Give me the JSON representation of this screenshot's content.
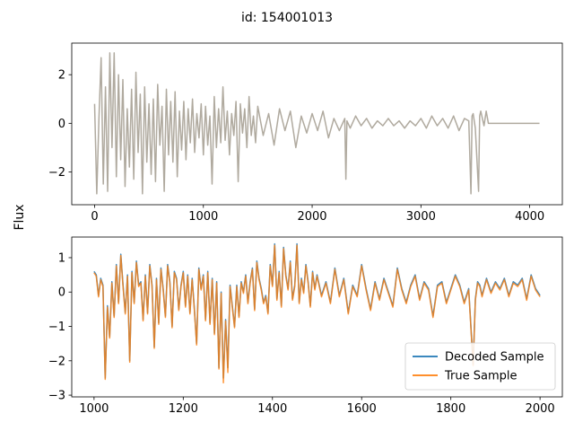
{
  "figure": {
    "suptitle": "id: 154001013",
    "ylabel": "Flux"
  },
  "colors": {
    "decoded": "#1f77b4",
    "true": "#ff7f0e",
    "top_overlap": "#b0aa9f",
    "legend_border": "#cccccc"
  },
  "chart_data": [
    {
      "type": "line",
      "panel": "top",
      "xlim": [
        -210,
        4300
      ],
      "ylim": [
        -3.35,
        3.3
      ],
      "xticks": [
        0,
        1000,
        2000,
        3000,
        4000
      ],
      "yticks": [
        -2,
        0,
        2
      ],
      "ytick_labels": [
        "−2",
        "0",
        "2"
      ],
      "series": [
        {
          "x": [
            0,
            20,
            40,
            60,
            80,
            100,
            120,
            140,
            160,
            180,
            200,
            220,
            240,
            260,
            280,
            300,
            320,
            340,
            360,
            380,
            400,
            420,
            440,
            460,
            480,
            500,
            520,
            540,
            560,
            580,
            600,
            620,
            640,
            660,
            680,
            700,
            720,
            740,
            760,
            780,
            800,
            820,
            840,
            860,
            880,
            900,
            920,
            940,
            960,
            980,
            1000,
            1020,
            1040,
            1060,
            1080,
            1100,
            1120,
            1140,
            1160,
            1180,
            1200,
            1220,
            1240,
            1260,
            1280,
            1300,
            1320,
            1340,
            1360,
            1380,
            1400,
            1420,
            1440,
            1460,
            1480,
            1500,
            1550,
            1600,
            1650,
            1700,
            1750,
            1800,
            1850,
            1900,
            1950,
            2000,
            2050,
            2100,
            2150,
            2200,
            2250,
            2300,
            2310,
            2320,
            2350,
            2400,
            2450,
            2500,
            2550,
            2600,
            2650,
            2700,
            2750,
            2800,
            2850,
            2900,
            2950,
            3000,
            3050,
            3100,
            3150,
            3200,
            3250,
            3300,
            3350,
            3400,
            3440,
            3460,
            3470,
            3480,
            3500,
            3530,
            3540,
            3550,
            3580,
            3600,
            3620,
            3700,
            3800,
            3900,
            4000,
            4090
          ],
          "y": [
            0.8,
            -2.9,
            0.2,
            2.7,
            -2.5,
            1.5,
            -2.8,
            2.9,
            -1.0,
            2.9,
            -2.2,
            2.0,
            -1.5,
            1.8,
            -2.6,
            0.6,
            -1.8,
            1.4,
            -2.3,
            2.1,
            -1.2,
            1.2,
            -2.9,
            1.5,
            -1.6,
            0.8,
            -2.1,
            1.0,
            -2.4,
            1.6,
            -0.9,
            0.7,
            -2.8,
            1.4,
            -1.3,
            0.9,
            -1.6,
            1.3,
            -2.2,
            0.5,
            -1.1,
            0.9,
            -1.5,
            0.6,
            -0.8,
            1.0,
            -1.2,
            0.4,
            -0.6,
            0.8,
            -1.3,
            0.7,
            -0.9,
            0.3,
            -2.5,
            1.1,
            -1.0,
            0.6,
            -0.8,
            1.5,
            -0.7,
            0.5,
            -1.3,
            0.4,
            -0.5,
            0.9,
            -2.4,
            0.8,
            -0.4,
            0.6,
            -1.0,
            1.1,
            -0.5,
            0.3,
            -0.8,
            0.7,
            -0.5,
            0.4,
            -0.9,
            0.6,
            -0.3,
            0.5,
            -1.0,
            0.3,
            -0.4,
            0.4,
            -0.3,
            0.5,
            -0.6,
            0.2,
            -0.3,
            0.2,
            -2.3,
            0.1,
            -0.2,
            0.3,
            -0.1,
            0.2,
            -0.2,
            0.1,
            -0.1,
            0.2,
            -0.1,
            0.1,
            -0.2,
            0.1,
            -0.1,
            0.2,
            -0.2,
            0.3,
            -0.1,
            0.2,
            -0.2,
            0.3,
            -0.3,
            0.2,
            0.1,
            -2.9,
            0.3,
            0.4,
            -0.2,
            -2.8,
            0.3,
            0.5,
            -0.1,
            0.5,
            0.0,
            0.0,
            0.0,
            0.0,
            0.0,
            0.0
          ],
          "color": "#b0aa9f"
        }
      ]
    },
    {
      "type": "line",
      "panel": "bottom",
      "xlim": [
        950,
        2050
      ],
      "ylim": [
        -3.05,
        1.6
      ],
      "xticks": [
        1000,
        1200,
        1400,
        1600,
        1800,
        2000
      ],
      "yticks": [
        -3,
        -2,
        -1,
        0,
        1
      ],
      "ytick_labels": [
        "−3",
        "−2",
        "−1",
        "0",
        "1"
      ],
      "legend": "lower right",
      "series": [
        {
          "name": "Decoded Sample",
          "color": "#1f77b4",
          "x": [
            1000,
            1005,
            1010,
            1015,
            1020,
            1025,
            1030,
            1035,
            1040,
            1045,
            1050,
            1055,
            1060,
            1065,
            1070,
            1075,
            1080,
            1085,
            1090,
            1095,
            1100,
            1105,
            1110,
            1115,
            1120,
            1125,
            1130,
            1135,
            1140,
            1145,
            1150,
            1155,
            1160,
            1165,
            1170,
            1175,
            1180,
            1185,
            1190,
            1195,
            1200,
            1205,
            1210,
            1215,
            1220,
            1225,
            1230,
            1235,
            1240,
            1245,
            1250,
            1255,
            1260,
            1265,
            1270,
            1275,
            1280,
            1285,
            1290,
            1295,
            1300,
            1305,
            1310,
            1315,
            1320,
            1325,
            1330,
            1335,
            1340,
            1345,
            1350,
            1355,
            1360,
            1365,
            1370,
            1375,
            1380,
            1385,
            1390,
            1395,
            1400,
            1405,
            1410,
            1415,
            1420,
            1425,
            1430,
            1435,
            1440,
            1445,
            1450,
            1455,
            1460,
            1465,
            1470,
            1475,
            1480,
            1485,
            1490,
            1495,
            1500,
            1510,
            1520,
            1530,
            1540,
            1550,
            1560,
            1570,
            1580,
            1590,
            1600,
            1610,
            1620,
            1630,
            1640,
            1650,
            1660,
            1670,
            1680,
            1690,
            1700,
            1710,
            1720,
            1730,
            1740,
            1750,
            1760,
            1770,
            1780,
            1790,
            1800,
            1810,
            1820,
            1830,
            1840,
            1850,
            1855,
            1860,
            1865,
            1870,
            1880,
            1890,
            1900,
            1910,
            1920,
            1930,
            1940,
            1950,
            1960,
            1970,
            1980,
            1990,
            2000
          ],
          "y": [
            0.6,
            0.5,
            -0.1,
            0.4,
            0.2,
            -2.5,
            -0.4,
            -1.3,
            0.3,
            -0.7,
            0.8,
            -0.3,
            1.1,
            0.2,
            -0.6,
            0.5,
            -2.0,
            0.6,
            -0.3,
            0.9,
            0.2,
            0.3,
            -0.8,
            0.5,
            -0.6,
            0.8,
            0.2,
            -1.6,
            0.4,
            -0.9,
            0.7,
            0.1,
            -0.7,
            0.8,
            0.3,
            -1.0,
            0.6,
            0.4,
            -0.5,
            0.2,
            0.6,
            -0.4,
            0.5,
            -0.6,
            0.4,
            -0.5,
            -1.5,
            0.7,
            0.1,
            0.5,
            -0.8,
            0.6,
            -0.9,
            0.4,
            -1.2,
            0.3,
            -2.2,
            0.0,
            -2.5,
            -0.8,
            -2.2,
            0.2,
            -0.4,
            -1.0,
            0.2,
            -0.7,
            0.3,
            0.0,
            0.5,
            -0.3,
            0.3,
            0.7,
            -0.5,
            0.9,
            0.4,
            0.1,
            -0.3,
            -0.1,
            -0.6,
            0.8,
            0.2,
            1.4,
            -0.2,
            0.6,
            -0.4,
            1.3,
            0.5,
            0.1,
            0.9,
            -0.2,
            0.2,
            1.4,
            -0.3,
            0.4,
            0.0,
            0.8,
            0.3,
            -0.4,
            0.6,
            0.1,
            0.5,
            -0.1,
            0.3,
            -0.3,
            0.7,
            -0.1,
            0.4,
            -0.6,
            0.2,
            -0.1,
            0.8,
            0.1,
            -0.5,
            0.3,
            -0.2,
            0.4,
            0.0,
            -0.4,
            0.7,
            0.1,
            -0.3,
            0.2,
            0.5,
            -0.2,
            0.3,
            0.1,
            -0.7,
            0.2,
            0.3,
            -0.3,
            0.1,
            0.5,
            0.2,
            -0.3,
            0.1,
            -2.1,
            -0.2,
            0.3,
            0.2,
            -0.1,
            0.4,
            0.0,
            0.3,
            0.1,
            0.4,
            -0.1,
            0.3,
            0.2,
            0.4,
            -0.2,
            0.5,
            0.1,
            -0.1
          ],
          "draw_offset": 0.0
        },
        {
          "name": "True Sample",
          "color": "#ff7f0e",
          "x": [
            1000,
            1005,
            1010,
            1015,
            1020,
            1025,
            1030,
            1035,
            1040,
            1045,
            1050,
            1055,
            1060,
            1065,
            1070,
            1075,
            1080,
            1085,
            1090,
            1095,
            1100,
            1105,
            1110,
            1115,
            1120,
            1125,
            1130,
            1135,
            1140,
            1145,
            1150,
            1155,
            1160,
            1165,
            1170,
            1175,
            1180,
            1185,
            1190,
            1195,
            1200,
            1205,
            1210,
            1215,
            1220,
            1225,
            1230,
            1235,
            1240,
            1245,
            1250,
            1255,
            1260,
            1265,
            1270,
            1275,
            1280,
            1285,
            1290,
            1295,
            1300,
            1305,
            1310,
            1315,
            1320,
            1325,
            1330,
            1335,
            1340,
            1345,
            1350,
            1355,
            1360,
            1365,
            1370,
            1375,
            1380,
            1385,
            1390,
            1395,
            1400,
            1405,
            1410,
            1415,
            1420,
            1425,
            1430,
            1435,
            1440,
            1445,
            1450,
            1455,
            1460,
            1465,
            1470,
            1475,
            1480,
            1485,
            1490,
            1495,
            1500,
            1510,
            1520,
            1530,
            1540,
            1550,
            1560,
            1570,
            1580,
            1590,
            1600,
            1610,
            1620,
            1630,
            1640,
            1650,
            1660,
            1670,
            1680,
            1690,
            1700,
            1710,
            1720,
            1730,
            1740,
            1750,
            1760,
            1770,
            1780,
            1790,
            1800,
            1810,
            1820,
            1830,
            1840,
            1850,
            1855,
            1860,
            1865,
            1870,
            1880,
            1890,
            1900,
            1910,
            1920,
            1930,
            1940,
            1950,
            1960,
            1970,
            1980,
            1990,
            2000
          ],
          "y": [
            0.6,
            0.5,
            -0.1,
            0.4,
            0.2,
            -2.5,
            -0.4,
            -1.3,
            0.3,
            -0.7,
            0.8,
            -0.3,
            1.1,
            0.2,
            -0.6,
            0.5,
            -2.0,
            0.6,
            -0.3,
            0.9,
            0.2,
            0.3,
            -0.8,
            0.5,
            -0.6,
            0.8,
            0.2,
            -1.6,
            0.4,
            -0.9,
            0.7,
            0.1,
            -0.7,
            0.8,
            0.3,
            -1.0,
            0.6,
            0.4,
            -0.5,
            0.2,
            0.6,
            -0.4,
            0.5,
            -0.6,
            0.4,
            -0.5,
            -1.5,
            0.7,
            0.1,
            0.5,
            -0.8,
            0.6,
            -0.9,
            0.4,
            -1.2,
            0.3,
            -2.2,
            0.0,
            -2.6,
            -0.8,
            -2.3,
            0.2,
            -0.4,
            -1.0,
            0.2,
            -0.7,
            0.3,
            0.0,
            0.5,
            -0.3,
            0.3,
            0.7,
            -0.5,
            0.9,
            0.4,
            0.1,
            -0.3,
            -0.1,
            -0.6,
            0.8,
            0.2,
            1.4,
            -0.2,
            0.6,
            -0.4,
            1.3,
            0.5,
            0.1,
            0.9,
            -0.2,
            0.2,
            1.4,
            -0.3,
            0.4,
            0.0,
            0.8,
            0.3,
            -0.4,
            0.6,
            0.1,
            0.5,
            -0.1,
            0.3,
            -0.3,
            0.7,
            -0.1,
            0.4,
            -0.6,
            0.2,
            -0.1,
            0.8,
            0.1,
            -0.5,
            0.3,
            -0.2,
            0.4,
            0.0,
            -0.4,
            0.7,
            0.1,
            -0.3,
            0.2,
            0.5,
            -0.2,
            0.3,
            0.1,
            -0.7,
            0.2,
            0.3,
            -0.3,
            0.1,
            0.5,
            0.2,
            -0.3,
            0.1,
            -2.1,
            -0.2,
            0.3,
            0.2,
            -0.1,
            0.4,
            0.0,
            0.3,
            0.1,
            0.4,
            -0.1,
            0.3,
            0.2,
            0.4,
            -0.2,
            0.5,
            0.1,
            -0.1
          ],
          "draw_offset": -0.04
        }
      ]
    }
  ]
}
